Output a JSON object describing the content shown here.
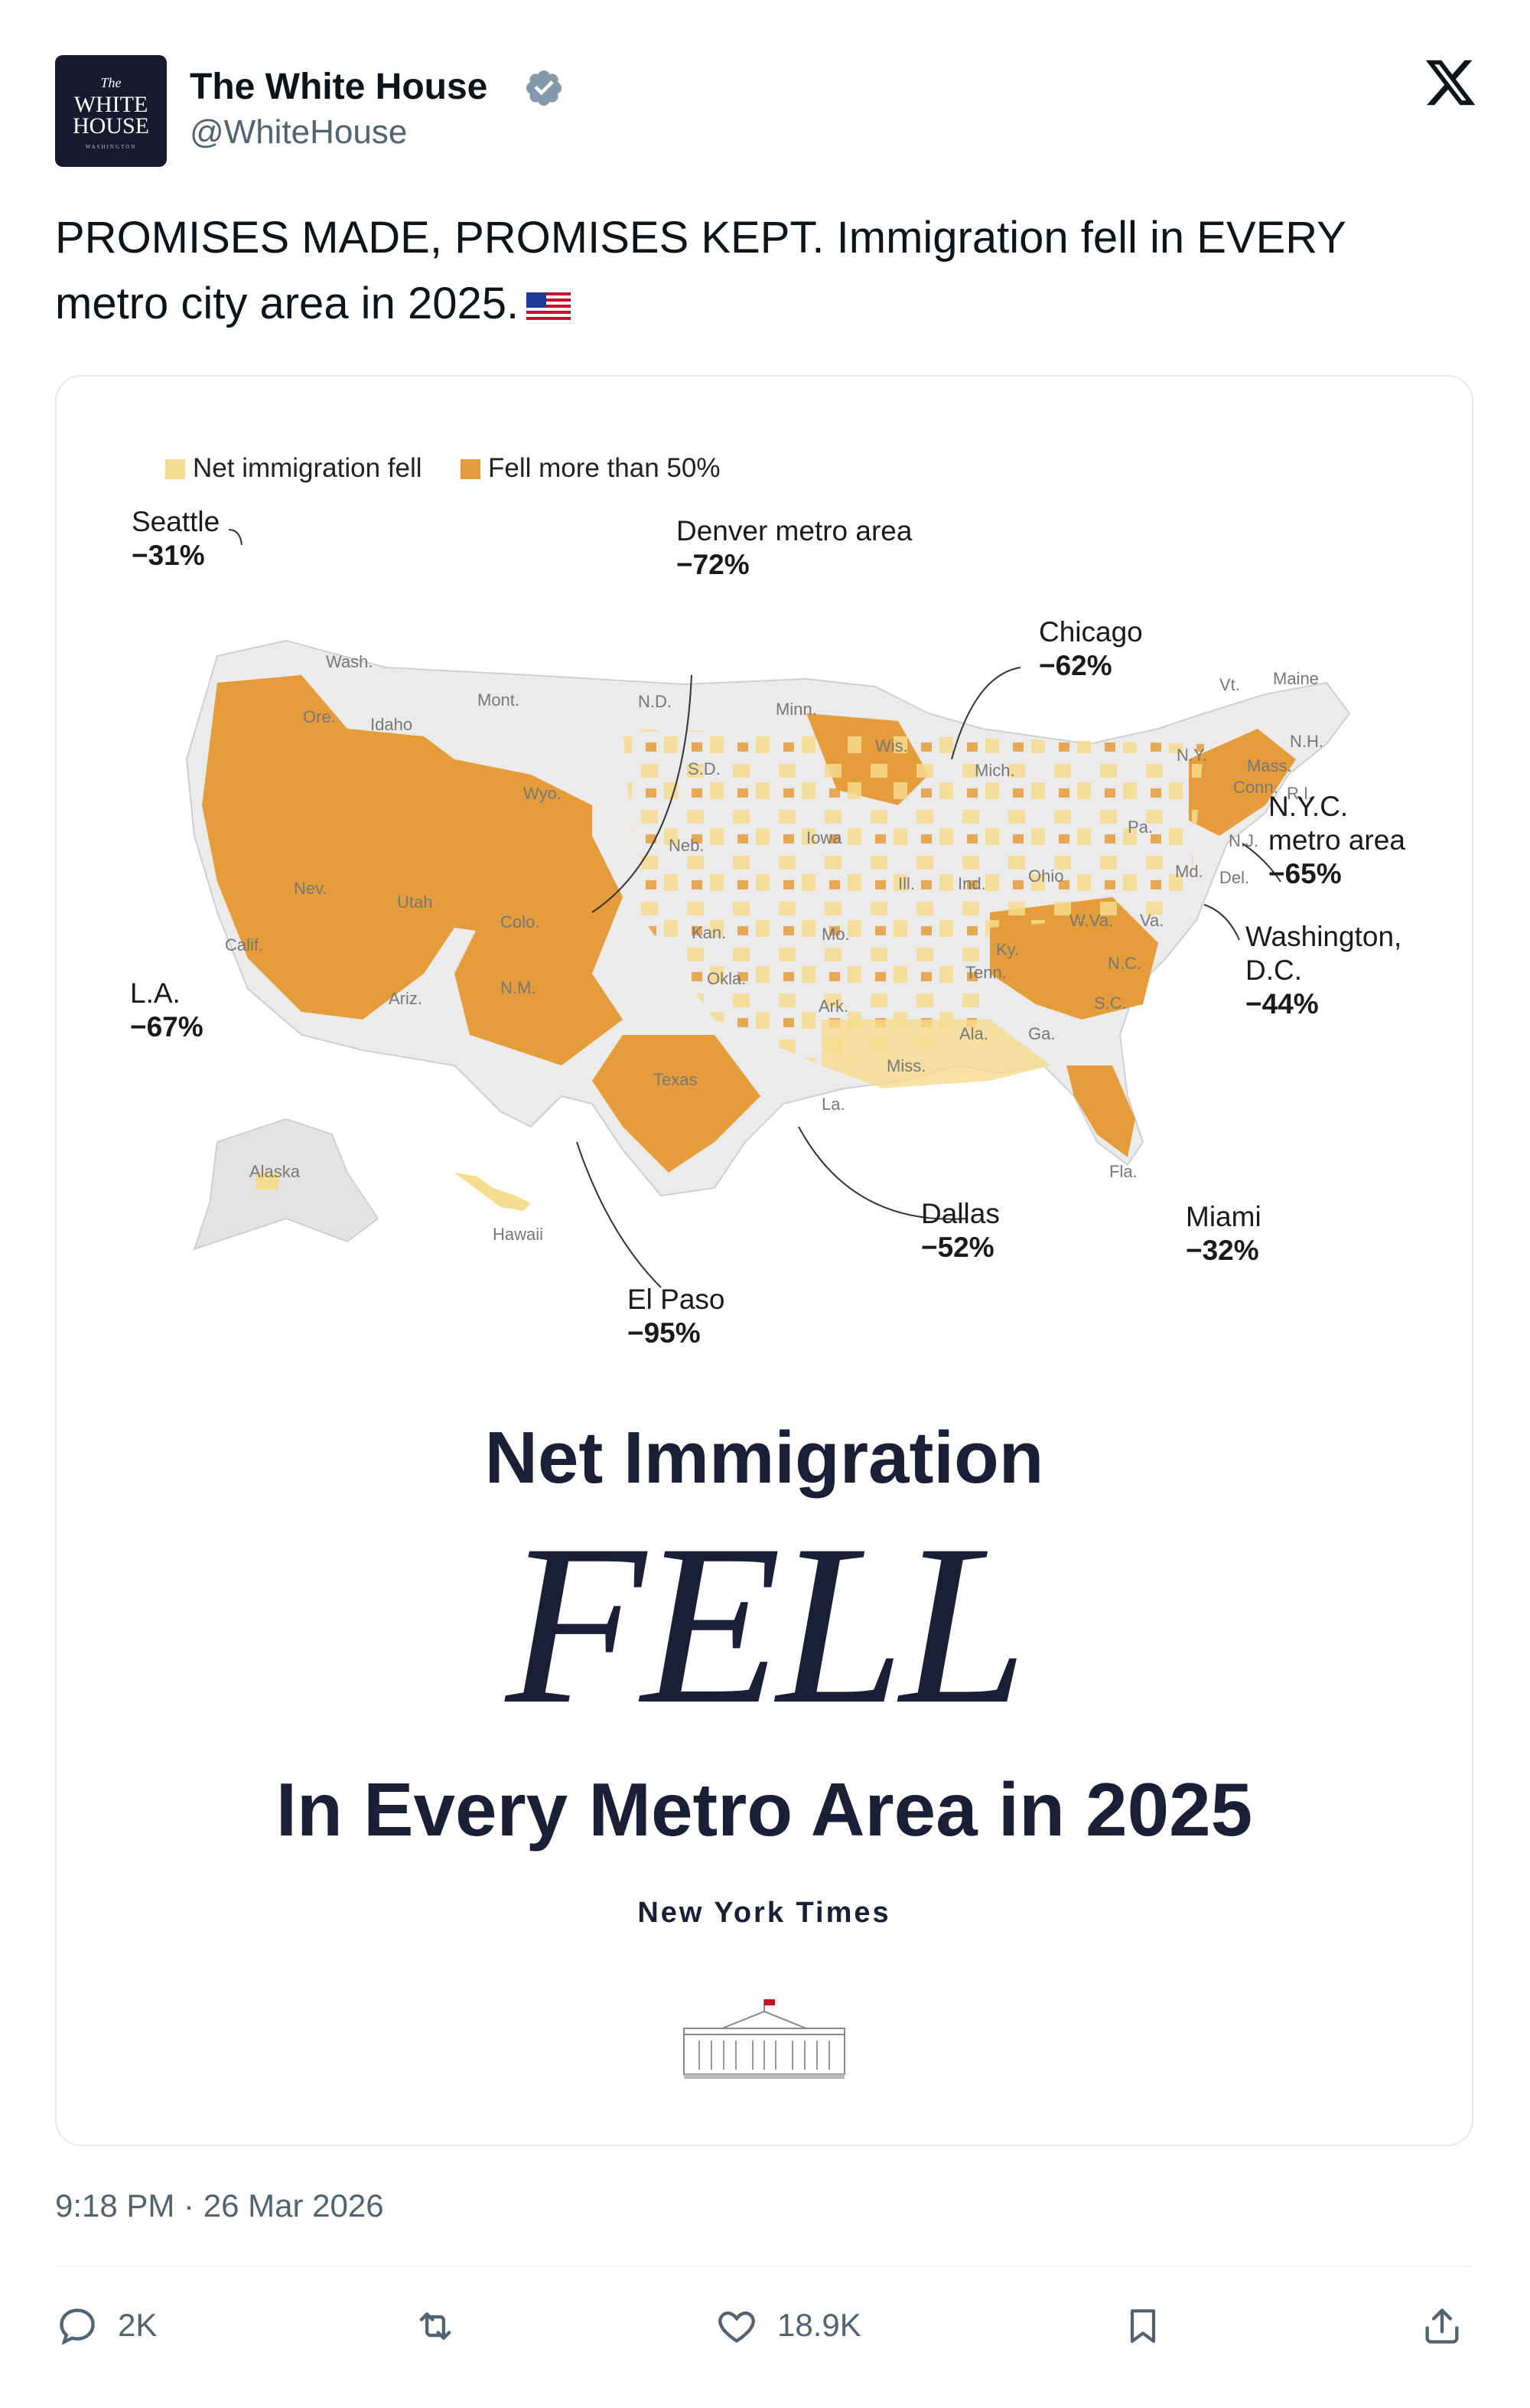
{
  "account": {
    "name": "The White House",
    "handle": "@WhiteHouse",
    "avatar_lines": [
      "The",
      "WHITE",
      "HOUSE",
      "WASHINGTON"
    ]
  },
  "tweet": {
    "text": "PROMISES MADE, PROMISES KEPT. Immigration fell in EVERY metro city area in 2025.",
    "emoji": "flag-us-icon"
  },
  "card": {
    "legend": [
      {
        "label": "Net immigration fell",
        "color": "#f6dc8f"
      },
      {
        "label": "Fell more than 50%",
        "color": "#e59c3a"
      }
    ],
    "metros": [
      {
        "name": "Seattle",
        "change": "−31%"
      },
      {
        "name": "Denver metro area",
        "change": "−72%"
      },
      {
        "name": "Chicago",
        "change": "−62%"
      },
      {
        "name": "N.Y.C. metro area",
        "change": "−65%"
      },
      {
        "name": "Washington, D.C.",
        "change": "−44%"
      },
      {
        "name": "L.A.",
        "change": "−67%"
      },
      {
        "name": "Dallas",
        "change": "−52%"
      },
      {
        "name": "Miami",
        "change": "−32%"
      },
      {
        "name": "El Paso",
        "change": "−95%"
      }
    ],
    "state_labels": [
      "Wash.",
      "Ore.",
      "Idaho",
      "Mont.",
      "N.D.",
      "Minn.",
      "Wis.",
      "Mich.",
      "Vt.",
      "Maine",
      "N.H.",
      "Mass.",
      "Conn.",
      "R.I.",
      "N.Y.",
      "Pa.",
      "N.J.",
      "Md.",
      "Del.",
      "Wyo.",
      "S.D.",
      "Neb.",
      "Iowa",
      "Ill.",
      "Ind.",
      "Ohio",
      "W.Va.",
      "Va.",
      "Nev.",
      "Utah",
      "Colo.",
      "Kan.",
      "Mo.",
      "Ky.",
      "Calif.",
      "Ariz.",
      "N.M.",
      "Okla.",
      "Ark.",
      "Tenn.",
      "N.C.",
      "S.C.",
      "Ala.",
      "Ga.",
      "Miss.",
      "La.",
      "Texas",
      "Fla.",
      "Alaska",
      "Hawaii"
    ],
    "headline_top": "Net Immigration",
    "headline_main": "FELL",
    "headline_bottom": "In Every Metro Area in 2025",
    "source": "New York Times"
  },
  "timestamp": "9:18 PM · 26 Mar 2026",
  "actions": {
    "replies": "2K",
    "reposts": "",
    "likes": "18.9K",
    "bookmark": "",
    "share": ""
  },
  "colors": {
    "light": "#f6dc8f",
    "dark": "#e59c3a",
    "land": "#ebebeb",
    "text_secondary": "#536471",
    "verified": "#829aab",
    "headline": "#1a1f36"
  }
}
